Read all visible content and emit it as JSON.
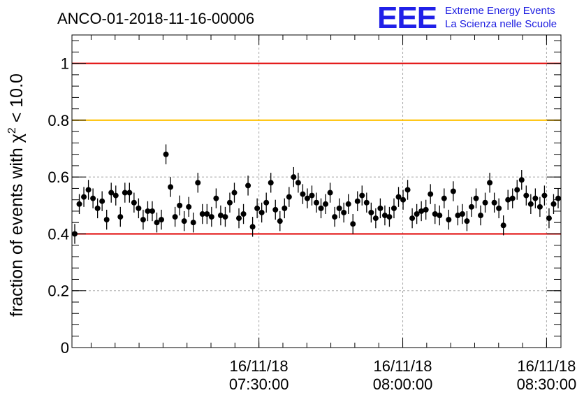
{
  "chart_data": {
    "type": "scatter",
    "title": "ANCO-01-2018-11-16-00006",
    "ylabel_prefix": "fraction of events with ",
    "ylabel_symbol": "χ",
    "ylabel_exponent": "2",
    "ylabel_suffix": " < 10.0",
    "ylim": [
      0,
      1.1
    ],
    "yticks": [
      "0",
      "0.2",
      "0.4",
      "0.6",
      "0.8",
      "1"
    ],
    "xlim_minutes": [
      -69,
      33
    ],
    "xticks": [
      {
        "minutes": -30,
        "date": "16/11/18",
        "time": "07:30:00"
      },
      {
        "minutes": 0,
        "date": "16/11/18",
        "time": "08:00:00"
      },
      {
        "minutes": 30,
        "date": "16/11/18",
        "time": "08:30:00"
      }
    ],
    "grid": true,
    "reference_lines": [
      {
        "y": 1.0,
        "color": "#e00000"
      },
      {
        "y": 0.8,
        "color": "#ffc000"
      },
      {
        "y": 0.4,
        "color": "#e00000"
      }
    ],
    "error": 0.035,
    "values": [
      0.4,
      0.505,
      0.53,
      0.555,
      0.525,
      0.49,
      0.515,
      0.45,
      0.545,
      0.535,
      0.46,
      0.545,
      0.545,
      0.51,
      0.49,
      0.45,
      0.48,
      0.48,
      0.44,
      0.45,
      0.68,
      0.565,
      0.46,
      0.5,
      0.445,
      0.495,
      0.44,
      0.58,
      0.47,
      0.47,
      0.46,
      0.525,
      0.465,
      0.46,
      0.51,
      0.545,
      0.455,
      0.47,
      0.57,
      0.425,
      0.49,
      0.475,
      0.51,
      0.58,
      0.485,
      0.445,
      0.49,
      0.53,
      0.6,
      0.58,
      0.54,
      0.525,
      0.535,
      0.51,
      0.49,
      0.505,
      0.545,
      0.46,
      0.49,
      0.475,
      0.505,
      0.435,
      0.515,
      0.535,
      0.51,
      0.475,
      0.455,
      0.49,
      0.465,
      0.46,
      0.49,
      0.53,
      0.52,
      0.555,
      0.455,
      0.47,
      0.48,
      0.485,
      0.54,
      0.47,
      0.465,
      0.525,
      0.45,
      0.55,
      0.465,
      0.47,
      0.445,
      0.495,
      0.525,
      0.465,
      0.51,
      0.58,
      0.51,
      0.49,
      0.43,
      0.52,
      0.525,
      0.555,
      0.59,
      0.535,
      0.505,
      0.525,
      0.495,
      0.535,
      0.455,
      0.505,
      0.525
    ]
  },
  "logo": {
    "mark": "EEE",
    "line1": "Extreme Energy Events",
    "line2": "La Scienza nelle Scuole"
  }
}
